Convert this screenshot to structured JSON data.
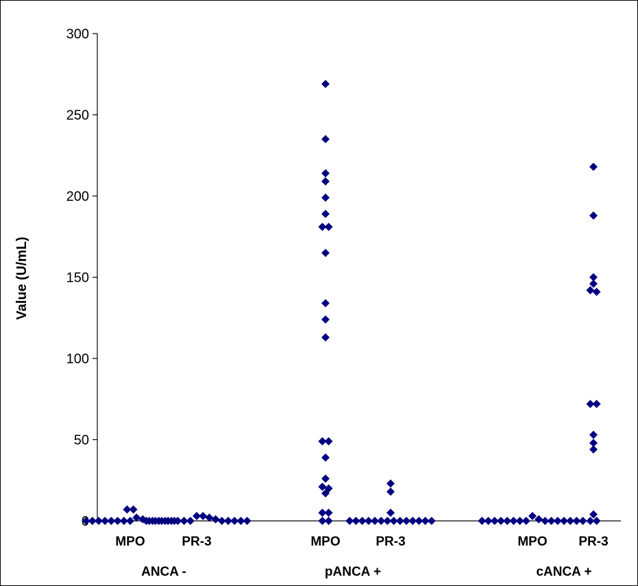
{
  "chart_data": {
    "type": "scatter",
    "title": "",
    "ylabel": "Value (U/mL)",
    "ylim": [
      0,
      300
    ],
    "yticks": [
      0,
      50,
      100,
      150,
      200,
      250,
      300
    ],
    "grid": false,
    "legend": "none",
    "marker_color": "#000080",
    "groups": [
      {
        "label": "ANCA -",
        "series": [
          {
            "label": "MPO",
            "values": [
              0,
              0,
              0,
              0,
              0,
              0,
              0,
              0,
              7,
              7,
              2,
              1,
              0,
              0,
              0,
              0,
              0
            ]
          },
          {
            "label": "PR-3",
            "values": [
              0,
              0,
              0,
              0,
              0,
              0,
              0,
              0,
              3,
              3,
              2,
              1,
              0,
              0,
              0,
              0,
              0
            ]
          }
        ]
      },
      {
        "label": "pANCA +",
        "series": [
          {
            "label": "MPO",
            "values": [
              269,
              235,
              214,
              209,
              199,
              189,
              181,
              181,
              165,
              134,
              124,
              113,
              49,
              49,
              39,
              26,
              21,
              20,
              17,
              5,
              5,
              0,
              0
            ]
          },
          {
            "label": "PR-3",
            "values": [
              23,
              18,
              5,
              0,
              0,
              0,
              0,
              0,
              0,
              0,
              0,
              0,
              0,
              0,
              0,
              0,
              0
            ]
          }
        ]
      },
      {
        "label": "cANCA +",
        "series": [
          {
            "label": "MPO",
            "values": [
              0,
              0,
              0,
              0,
              0,
              0,
              0,
              0,
              3,
              1,
              0,
              0,
              0,
              0,
              0,
              0,
              0
            ]
          },
          {
            "label": "PR-3",
            "values": [
              218,
              188,
              150,
              146,
              142,
              141,
              72,
              72,
              53,
              48,
              44,
              4,
              0,
              0
            ]
          }
        ]
      }
    ]
  }
}
